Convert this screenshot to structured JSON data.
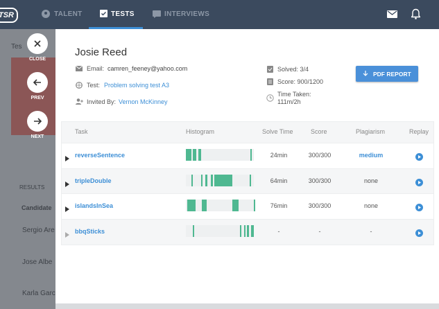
{
  "nav": {
    "logo": "TSR",
    "items": [
      "TALENT",
      "TESTS",
      "INTERVIEWS"
    ]
  },
  "background": {
    "breadcrumb": "Tes",
    "results": "RESULTS",
    "candidate_header": "Candidate",
    "candidates": [
      "Sergio Are",
      "Jose Albe",
      "Karla Garc"
    ]
  },
  "controls": [
    "CLOSE",
    "PREV",
    "NEXT"
  ],
  "profile": {
    "name": "Josie Reed",
    "email_label": "Email:",
    "email": "camren_feeney@yahoo.com",
    "test_label": "Test:",
    "test": "Problem solving test A3",
    "invited_label": "Invited By:",
    "invited_by": "Vernon McKinney",
    "solved": "Solved: 3/4",
    "score": "Score: 900/1200",
    "time_label": "Time Taken:",
    "time": "111m/2h"
  },
  "pdf_button": "PDF REPORT",
  "table": {
    "columns": [
      "Task",
      "Histogram",
      "Solve Time",
      "Score",
      "Plagiarism",
      "Replay"
    ],
    "rows": [
      [
        "reverseSentence",
        "24min",
        "300/300",
        "medium"
      ],
      [
        "tripleDouble",
        "64min",
        "300/300",
        "none"
      ],
      [
        "islandsInSea",
        "76min",
        "300/300",
        "none"
      ],
      [
        "bbqSticks",
        "-",
        "-",
        "-"
      ]
    ]
  }
}
